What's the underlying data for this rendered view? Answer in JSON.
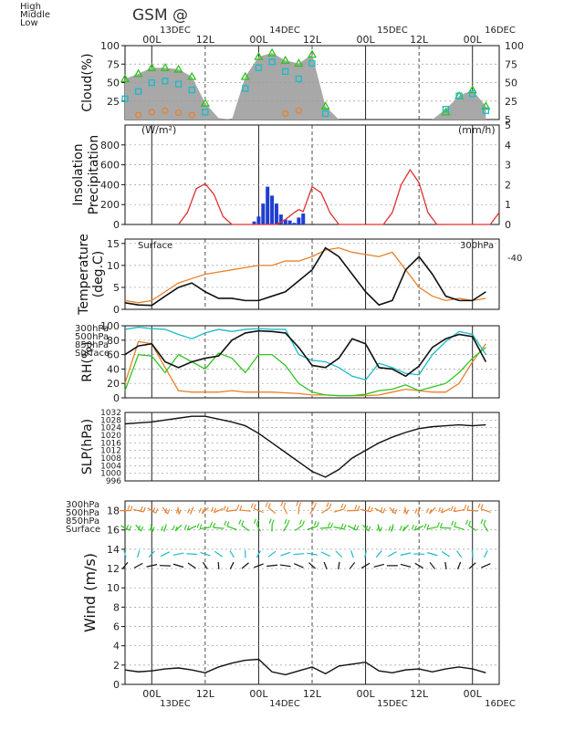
{
  "header": {
    "title": "GSM  @"
  },
  "x_axis": {
    "top_dates": [
      "13DEC",
      "14DEC",
      "15DEC",
      "16DEC"
    ],
    "bottom_dates": [
      "13DEC",
      "14DEC",
      "15DEC",
      "16DEC"
    ],
    "hour_labels": [
      "00L",
      "12L",
      "00L",
      "12L",
      "00L",
      "12L",
      "00L"
    ],
    "hour_positions_h": [
      6,
      18,
      30,
      42,
      54,
      66,
      78
    ],
    "day_lines_h": [
      6,
      30,
      54,
      78
    ],
    "half_day_lines_h": [
      18,
      42,
      66
    ]
  },
  "chart_data": [
    {
      "type": "area",
      "ylabel": "Cloud(%)",
      "legend": [
        "High",
        "Middle",
        "Low"
      ],
      "legend_colors": [
        "#e8802a",
        "#2ec41e",
        "#18bcc8"
      ],
      "ylim": [
        0,
        100
      ],
      "yticks": [
        25,
        50,
        75,
        100
      ],
      "right_yticks": [
        5,
        25,
        50,
        75,
        100
      ],
      "x": [
        0,
        3,
        6,
        9,
        12,
        15,
        18,
        21,
        24,
        27,
        30,
        33,
        36,
        39,
        42,
        45,
        48,
        51,
        54,
        57,
        60,
        63,
        66,
        69,
        72,
        75,
        78,
        81
      ],
      "series": [
        {
          "name": "Middle",
          "values": [
            55,
            62,
            70,
            70,
            68,
            58,
            22,
            2,
            0,
            58,
            85,
            90,
            80,
            76,
            88,
            18,
            0,
            0,
            0,
            0,
            0,
            0,
            0,
            0,
            10,
            32,
            40,
            18
          ]
        },
        {
          "name": "Low",
          "values": [
            28,
            38,
            50,
            52,
            48,
            40,
            10,
            0,
            0,
            42,
            70,
            78,
            65,
            55,
            76,
            8,
            0,
            0,
            0,
            0,
            0,
            0,
            0,
            0,
            14,
            32,
            35,
            12
          ]
        },
        {
          "name": "High",
          "values": [
            2,
            6,
            10,
            12,
            9,
            6,
            0,
            0,
            0,
            0,
            0,
            0,
            8,
            12,
            0,
            0,
            0,
            0,
            0,
            0,
            0,
            0,
            0,
            0,
            0,
            0,
            0,
            0
          ]
        }
      ]
    },
    {
      "type": "line",
      "ylabel": "Insolation Precipitation",
      "left_unit": "(W/m²)",
      "right_unit": "(mm/h)",
      "ylim": [
        0,
        1000
      ],
      "yticks": [
        0,
        200,
        400,
        600,
        800
      ],
      "right_yticks": [
        0,
        1,
        2,
        3,
        4,
        5
      ],
      "series": [
        {
          "name": "Insolation",
          "x": [
            12,
            14,
            16,
            18,
            20,
            22,
            24,
            34,
            36,
            38,
            39,
            40,
            42,
            44,
            46,
            48,
            58,
            60,
            62,
            64,
            66,
            68,
            70,
            72,
            82,
            84
          ],
          "values": [
            0,
            120,
            360,
            410,
            300,
            80,
            0,
            0,
            50,
            120,
            150,
            130,
            380,
            320,
            120,
            0,
            0,
            120,
            400,
            550,
            420,
            120,
            0,
            0,
            0,
            120
          ]
        },
        {
          "name": "Precipitation",
          "type": "bar",
          "x": [
            29,
            30,
            31,
            32,
            33,
            34,
            35,
            36,
            37,
            38,
            39,
            40
          ],
          "values": [
            0.15,
            0.4,
            1.05,
            1.9,
            1.45,
            1.05,
            0.5,
            0.25,
            0.2,
            0.08,
            0.35,
            0.55
          ]
        }
      ]
    },
    {
      "type": "line",
      "ylabel": "Temperature (deg.C)",
      "surface_label": "Surface",
      "upper_label": "300hPa",
      "upper_offset": "-40",
      "ylim": [
        0,
        16
      ],
      "yticks": [
        0,
        5,
        10,
        15
      ],
      "series": [
        {
          "name": "Surface",
          "x": [
            0,
            3,
            6,
            9,
            12,
            15,
            18,
            21,
            24,
            27,
            30,
            33,
            36,
            39,
            42,
            45,
            48,
            51,
            54,
            57,
            60,
            63,
            66,
            69,
            72,
            75,
            78,
            81
          ],
          "values": [
            1.5,
            1,
            0.9,
            3,
            5,
            6,
            4,
            2.5,
            2.5,
            2,
            2,
            3,
            4,
            6.5,
            9,
            14,
            12,
            8,
            4,
            1,
            2,
            9,
            12,
            8,
            3,
            2,
            2,
            4
          ]
        },
        {
          "name": "300hPa",
          "x": [
            0,
            3,
            6,
            9,
            12,
            15,
            18,
            21,
            24,
            27,
            30,
            33,
            36,
            39,
            42,
            45,
            48,
            51,
            54,
            57,
            60,
            63,
            66,
            69,
            72,
            75,
            78,
            81
          ],
          "values": [
            2,
            1.5,
            2,
            4,
            6,
            7,
            8,
            8.5,
            9,
            9.5,
            10,
            10,
            11,
            11,
            12,
            13.5,
            14,
            13,
            12.5,
            12,
            13,
            9,
            5,
            3,
            2,
            2.5,
            2,
            2.5
          ]
        }
      ]
    },
    {
      "type": "line",
      "ylabel": "RH(%)",
      "legend": [
        "300hPa",
        "500hPa",
        "850hPa",
        "Surface"
      ],
      "legend_colors": [
        "#e8802a",
        "#2ec41e",
        "#18bcc8",
        "#111111"
      ],
      "ylim": [
        0,
        100
      ],
      "yticks": [
        0,
        20,
        40,
        60,
        80,
        100
      ],
      "x": [
        0,
        3,
        6,
        9,
        12,
        15,
        18,
        21,
        24,
        27,
        30,
        33,
        36,
        39,
        42,
        45,
        48,
        51,
        54,
        57,
        60,
        63,
        66,
        69,
        72,
        75,
        78,
        81
      ],
      "series": [
        {
          "name": "300hPa",
          "values": [
            20,
            78,
            75,
            42,
            10,
            8,
            8,
            8,
            10,
            8,
            8,
            8,
            7,
            6,
            4,
            4,
            3,
            3,
            3,
            4,
            8,
            12,
            10,
            8,
            8,
            20,
            50,
            75
          ]
        },
        {
          "name": "500hPa",
          "values": [
            10,
            60,
            58,
            35,
            60,
            50,
            40,
            62,
            55,
            35,
            60,
            60,
            45,
            20,
            8,
            4,
            3,
            3,
            5,
            10,
            12,
            18,
            10,
            15,
            20,
            35,
            55,
            70
          ]
        },
        {
          "name": "850hPa",
          "values": [
            95,
            98,
            96,
            95,
            88,
            82,
            90,
            95,
            92,
            95,
            96,
            95,
            95,
            60,
            52,
            50,
            42,
            30,
            25,
            48,
            42,
            34,
            32,
            60,
            78,
            92,
            88,
            60
          ]
        },
        {
          "name": "Surface",
          "values": [
            60,
            72,
            75,
            50,
            42,
            50,
            55,
            58,
            80,
            90,
            93,
            92,
            90,
            70,
            45,
            42,
            55,
            82,
            75,
            42,
            40,
            30,
            44,
            70,
            82,
            88,
            85,
            50
          ]
        }
      ]
    },
    {
      "type": "line",
      "ylabel": "SLP(hPa)",
      "ylim": [
        996,
        1032
      ],
      "yticks": [
        996,
        1000,
        1004,
        1008,
        1012,
        1016,
        1020,
        1024,
        1028,
        1032
      ],
      "series": [
        {
          "name": "SLP",
          "x": [
            0,
            3,
            6,
            9,
            12,
            15,
            18,
            21,
            24,
            27,
            30,
            33,
            36,
            39,
            42,
            45,
            48,
            51,
            54,
            57,
            60,
            63,
            66,
            69,
            72,
            75,
            78,
            81
          ],
          "values": [
            1026,
            1026.5,
            1027,
            1028,
            1029,
            1030,
            1030,
            1028.5,
            1027,
            1025,
            1021,
            1016,
            1011,
            1006,
            1001,
            998,
            1002,
            1008,
            1012,
            1016,
            1019,
            1021.5,
            1023.5,
            1024.5,
            1025,
            1025.5,
            1025,
            1025.5
          ]
        }
      ]
    },
    {
      "type": "line",
      "ylabel": "Wind (m/s)",
      "legend": [
        "300hPa",
        "500hPa",
        "850hPa",
        "Surface"
      ],
      "legend_colors": [
        "#e8802a",
        "#2ec41e",
        "#18bcc8",
        "#111111"
      ],
      "ylim": [
        0,
        19
      ],
      "yticks": [
        0,
        2,
        4,
        6,
        8,
        10,
        12,
        14,
        16,
        18
      ],
      "series": [
        {
          "name": "Surface",
          "x": [
            0,
            3,
            6,
            9,
            12,
            15,
            18,
            21,
            24,
            27,
            30,
            33,
            36,
            39,
            42,
            45,
            48,
            51,
            54,
            57,
            60,
            63,
            66,
            69,
            72,
            75,
            78,
            81
          ],
          "values": [
            1.5,
            1.3,
            1.4,
            1.6,
            1.7,
            1.5,
            1.2,
            1.8,
            2.2,
            2.5,
            2.6,
            1.3,
            1.0,
            1.4,
            1.8,
            1.1,
            1.9,
            2.1,
            2.3,
            1.4,
            1.2,
            1.5,
            1.6,
            1.3,
            1.6,
            1.8,
            1.6,
            1.2
          ]
        }
      ]
    }
  ]
}
